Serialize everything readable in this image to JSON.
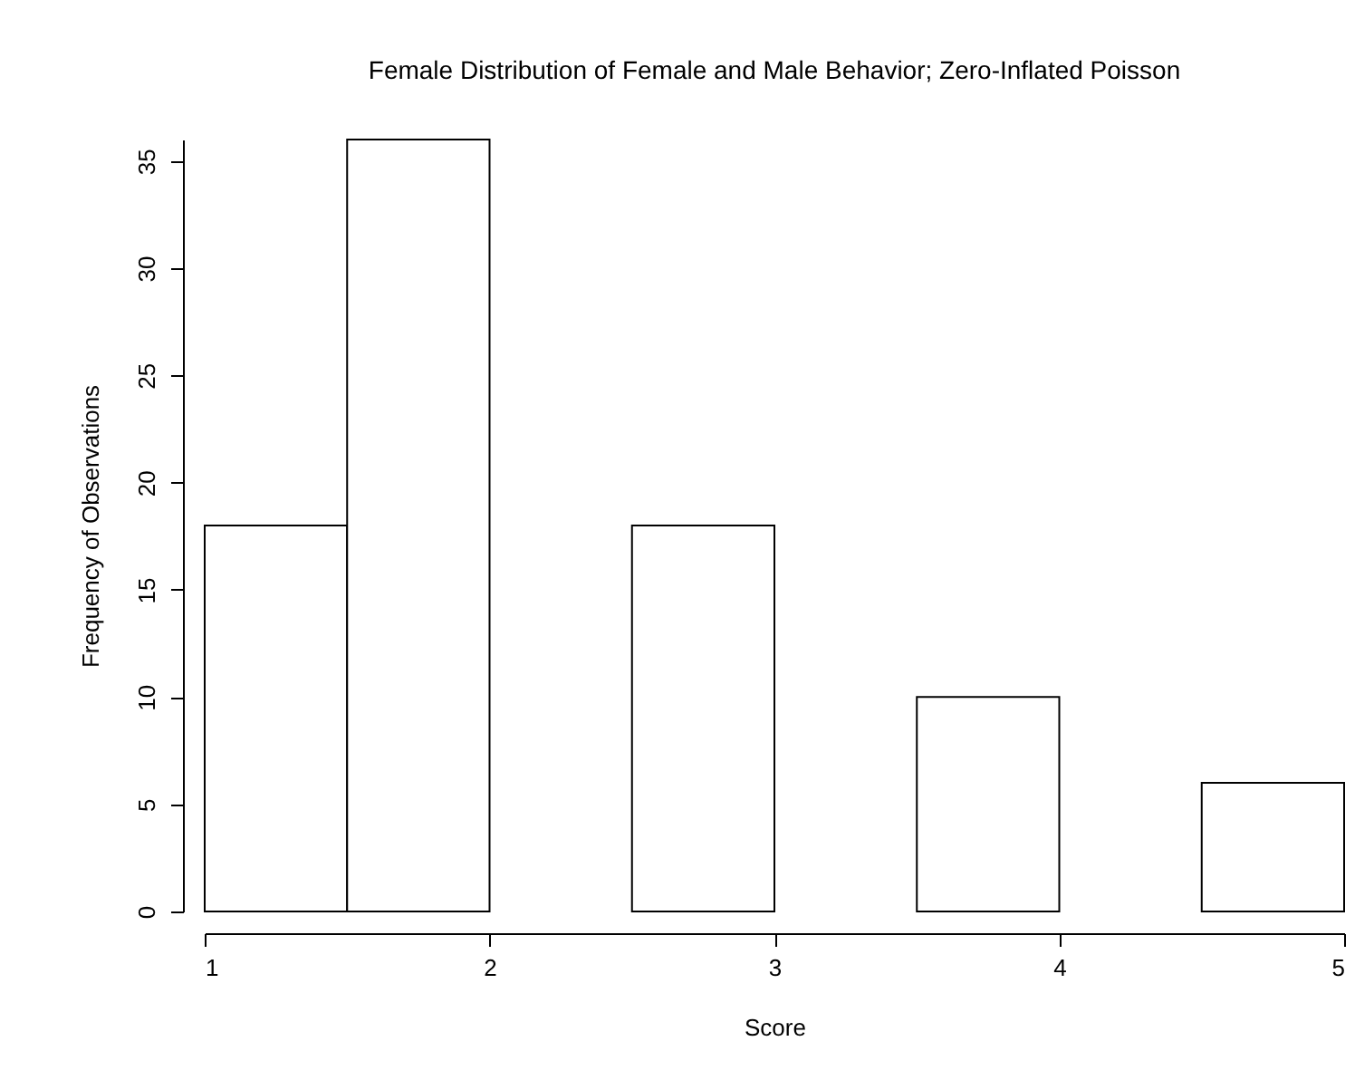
{
  "chart_data": {
    "type": "histogram",
    "title": "Female Distribution of Female and Male Behavior; Zero-Inflated Poisson",
    "xlabel": "Score",
    "ylabel": "Frequency of Observations",
    "bins": [
      1,
      1.5,
      2,
      2.5,
      3,
      3.5,
      4,
      4.5,
      5
    ],
    "values": [
      18,
      36,
      0,
      18,
      0,
      10,
      0,
      6
    ],
    "color": "#ffffff",
    "xlim": [
      1,
      5
    ],
    "xticks": [
      1,
      2,
      3,
      4,
      5
    ],
    "ylim": [
      0,
      36
    ],
    "yticks": [
      0,
      5,
      10,
      15,
      20,
      25,
      30,
      35
    ],
    "grid": false
  }
}
